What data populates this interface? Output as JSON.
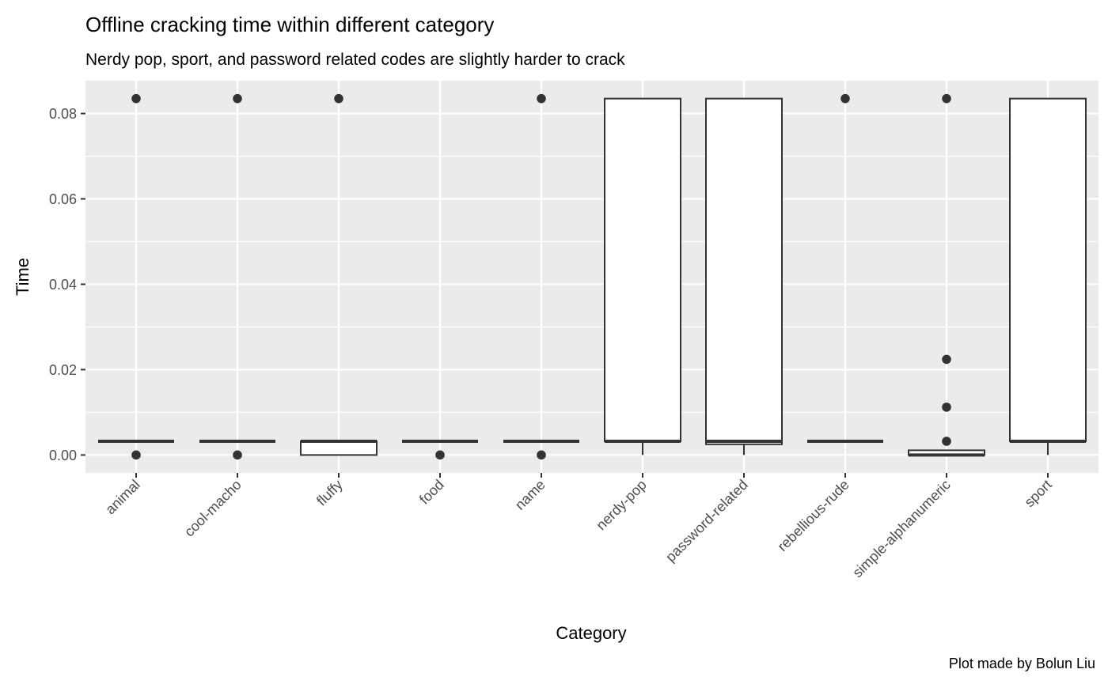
{
  "chart_data": {
    "type": "boxplot",
    "title": "Offline cracking time within different category",
    "subtitle": "Nerdy pop, sport, and password related codes are slightly harder to crack",
    "xlabel": "Category",
    "ylabel": "Time",
    "caption": "Plot made by Bolun Liu",
    "ylim": [
      -0.0042,
      0.0877
    ],
    "y_ticks": [
      0.0,
      0.02,
      0.04,
      0.06,
      0.08
    ],
    "y_tick_labels": [
      "0.00",
      "0.02",
      "0.04",
      "0.06",
      "0.08"
    ],
    "grid": true,
    "categories": [
      "animal",
      "cool-macho",
      "fluffy",
      "food",
      "name",
      "nerdy-pop",
      "password-related",
      "rebellious-rude",
      "simple-alphanumeric",
      "sport"
    ],
    "boxes": [
      {
        "category": "animal",
        "q1": 0.00321,
        "median": 0.00321,
        "q3": 0.00321,
        "whisker_low": 0.00321,
        "whisker_high": 0.00321,
        "outliers": [
          0.0835,
          0.0
        ]
      },
      {
        "category": "cool-macho",
        "q1": 0.00321,
        "median": 0.00321,
        "q3": 0.00321,
        "whisker_low": 0.00321,
        "whisker_high": 0.00321,
        "outliers": [
          0.0835,
          0.0
        ]
      },
      {
        "category": "fluffy",
        "q1": 0.0,
        "median": 0.00321,
        "q3": 0.00321,
        "whisker_low": 0.0,
        "whisker_high": 0.00321,
        "outliers": [
          0.0835
        ]
      },
      {
        "category": "food",
        "q1": 0.00321,
        "median": 0.00321,
        "q3": 0.00321,
        "whisker_low": 0.00321,
        "whisker_high": 0.00321,
        "outliers": [
          0.0
        ]
      },
      {
        "category": "name",
        "q1": 0.00321,
        "median": 0.00321,
        "q3": 0.00321,
        "whisker_low": 0.00321,
        "whisker_high": 0.00321,
        "outliers": [
          0.0835,
          0.0
        ]
      },
      {
        "category": "nerdy-pop",
        "q1": 0.00321,
        "median": 0.00321,
        "q3": 0.0835,
        "whisker_low": 0.0,
        "whisker_high": 0.0835,
        "outliers": []
      },
      {
        "category": "password-related",
        "q1": 0.0025,
        "median": 0.00321,
        "q3": 0.0835,
        "whisker_low": 0.0,
        "whisker_high": 0.0835,
        "outliers": []
      },
      {
        "category": "rebellious-rude",
        "q1": 0.00321,
        "median": 0.00321,
        "q3": 0.00321,
        "whisker_low": 0.00321,
        "whisker_high": 0.00321,
        "outliers": [
          0.0835
        ]
      },
      {
        "category": "simple-alphanumeric",
        "q1": 0.0,
        "median": 0.0,
        "q3": 0.0011,
        "whisker_low": 0.0,
        "whisker_high": 0.0011,
        "outliers": [
          0.0835,
          0.0224,
          0.0112,
          0.00321
        ]
      },
      {
        "category": "sport",
        "q1": 0.00321,
        "median": 0.00321,
        "q3": 0.0835,
        "whisker_low": 0.0,
        "whisker_high": 0.0835,
        "outliers": []
      }
    ],
    "colors": {
      "panel_background": "#ebebeb",
      "grid_major": "#ffffff",
      "box_fill": "#ffffff",
      "box_stroke": "#333333",
      "outlier": "#333333",
      "tick_label": "#4d4d4d",
      "tick_mark": "#333333",
      "text": "#000000"
    }
  }
}
